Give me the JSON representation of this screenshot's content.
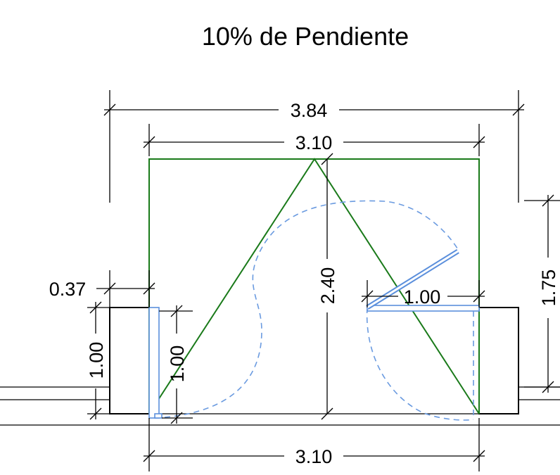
{
  "title": "10% de Pendiente",
  "dimensions": {
    "overall_width": "3.84",
    "inner_width_top": "3.10",
    "inner_width_bottom": "3.10",
    "ramp_depth": "2.40",
    "right_height": "1.75",
    "left_offset": "0.37",
    "left_wall_height": "1.00",
    "left_door_width": "1.00",
    "right_door_width": "1.00"
  },
  "colors": {
    "ramp_outline": "#1a7a1a",
    "door": "#5b8fdc",
    "dimension": "#000000"
  }
}
